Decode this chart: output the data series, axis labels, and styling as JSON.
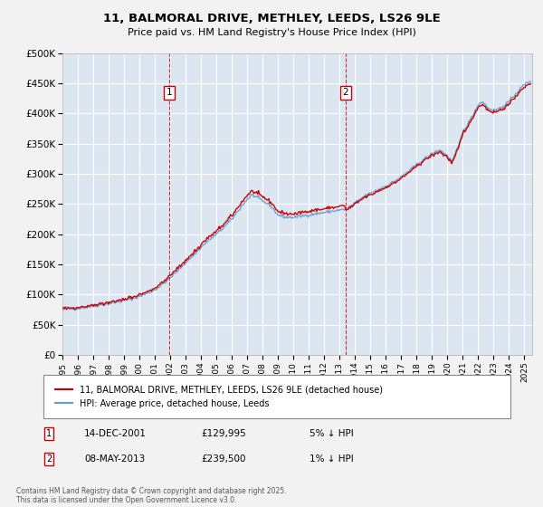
{
  "title": "11, BALMORAL DRIVE, METHLEY, LEEDS, LS26 9LE",
  "subtitle": "Price paid vs. HM Land Registry's House Price Index (HPI)",
  "ytick_values": [
    0,
    50000,
    100000,
    150000,
    200000,
    250000,
    300000,
    350000,
    400000,
    450000,
    500000
  ],
  "ylim": [
    0,
    500000
  ],
  "xlim_start": 1995,
  "xlim_end": 2025.5,
  "purchase1_x": 2001.95,
  "purchase1_label": "1",
  "purchase1_date": "14-DEC-2001",
  "purchase1_price": "£129,995",
  "purchase1_hpi": "5% ↓ HPI",
  "purchase2_x": 2013.37,
  "purchase2_label": "2",
  "purchase2_date": "08-MAY-2013",
  "purchase2_price": "£239,500",
  "purchase2_hpi": "1% ↓ HPI",
  "line_color_price": "#cc0000",
  "line_color_hpi": "#6699cc",
  "plot_bg_color": "#dce6f1",
  "outer_bg_color": "#f2f2f2",
  "grid_color": "#ffffff",
  "legend_label_price": "11, BALMORAL DRIVE, METHLEY, LEEDS, LS26 9LE (detached house)",
  "legend_label_hpi": "HPI: Average price, detached house, Leeds",
  "footer": "Contains HM Land Registry data © Crown copyright and database right 2025.\nThis data is licensed under the Open Government Licence v3.0.",
  "xticks": [
    1995,
    1996,
    1997,
    1998,
    1999,
    2000,
    2001,
    2002,
    2003,
    2004,
    2005,
    2006,
    2007,
    2008,
    2009,
    2010,
    2011,
    2012,
    2013,
    2014,
    2015,
    2016,
    2017,
    2018,
    2019,
    2020,
    2021,
    2022,
    2023,
    2024,
    2025
  ]
}
